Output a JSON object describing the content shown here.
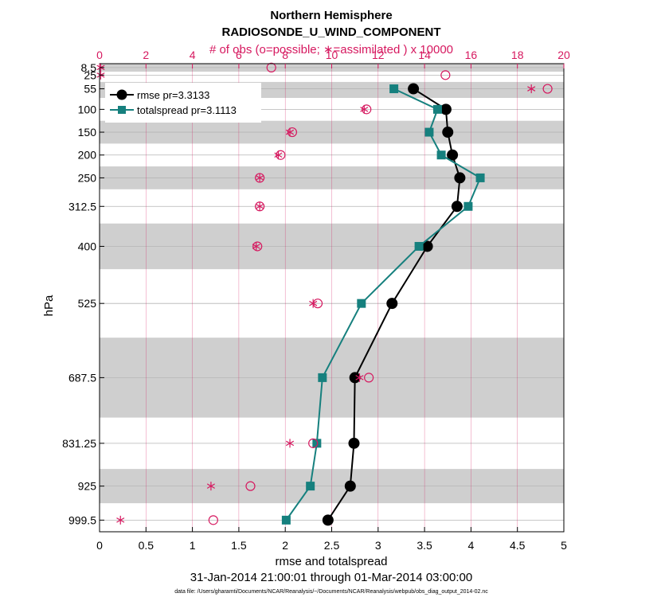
{
  "chart_data": {
    "type": "line",
    "title": "Northern Hemisphere",
    "subtitle": "RADIOSONDE_U_WIND_COMPONENT",
    "top_axis_label": "# of obs (o=possible; ∗=assimilated ) x 10000",
    "xlabel": "rmse and totalspread",
    "ylabel": "hPa",
    "date_range": "31-Jan-2014 21:00:01 through 01-Mar-2014 03:00:00",
    "footer": "data file: /Users/gharamti/Documents/NCAR/Reanalysis/~/Documents/NCAR/Reanalysis/webpub/obs_diag_output_2014-02.nc",
    "xlim": [
      0,
      5
    ],
    "xticks": [
      "0",
      "0.5",
      "1",
      "1.5",
      "2",
      "2.5",
      "3",
      "3.5",
      "4",
      "4.5",
      "5"
    ],
    "top_xlim": [
      0,
      20
    ],
    "top_xticks": [
      "0",
      "2",
      "4",
      "6",
      "8",
      "10",
      "12",
      "14",
      "16",
      "18",
      "20"
    ],
    "ylim": [
      1025,
      0
    ],
    "levels": [
      8.5,
      25,
      55,
      100,
      150,
      200,
      250,
      312.5,
      400,
      525,
      687.5,
      831.25,
      925,
      999.5
    ],
    "level_labels": [
      "8.5",
      "25",
      "55",
      "100",
      "150",
      "200",
      "250",
      "312.5",
      "400",
      "525",
      "687.5",
      "831.25",
      "925",
      "999.5"
    ],
    "shaded_bands": [
      [
        0,
        17.5
      ],
      [
        40,
        75
      ],
      [
        125,
        175
      ],
      [
        225,
        275
      ],
      [
        350,
        450
      ],
      [
        600,
        775
      ],
      [
        887.5,
        962.5
      ]
    ],
    "grid": true,
    "legend_position": "top-left",
    "series": [
      {
        "name": "rmse pr=3.3133",
        "color": "#000000",
        "marker": "circle",
        "axis": "bottom",
        "y": [
          55,
          100,
          150,
          200,
          250,
          312.5,
          400,
          525,
          687.5,
          831.25,
          925,
          999.5
        ],
        "values": [
          3.38,
          3.73,
          3.75,
          3.8,
          3.88,
          3.85,
          3.53,
          3.15,
          2.75,
          2.74,
          2.7,
          2.46
        ]
      },
      {
        "name": "totalspread pr=3.1113",
        "color": "#16807e",
        "marker": "square",
        "axis": "bottom",
        "y": [
          55,
          100,
          150,
          200,
          250,
          312.5,
          400,
          525,
          687.5,
          831.25,
          925,
          999.5
        ],
        "values": [
          3.17,
          3.64,
          3.55,
          3.68,
          4.1,
          3.97,
          3.44,
          2.82,
          2.4,
          2.34,
          2.27,
          2.01
        ]
      },
      {
        "name": "possible",
        "color": "#d6185f",
        "marker": "open-circle",
        "axis": "top",
        "y": [
          8.5,
          25,
          55,
          100,
          150,
          200,
          250,
          312.5,
          400,
          525,
          687.5,
          831.25,
          925,
          999.5
        ],
        "values": [
          7.4,
          14.9,
          19.3,
          11.5,
          8.3,
          7.8,
          6.9,
          6.9,
          6.8,
          9.4,
          11.6,
          9.2,
          6.5,
          4.9
        ]
      },
      {
        "name": "assimilated",
        "color": "#d6185f",
        "marker": "asterisk",
        "axis": "top",
        "y": [
          8.5,
          25,
          55,
          100,
          150,
          200,
          250,
          312.5,
          400,
          525,
          687.5,
          831.25,
          925,
          999.5
        ],
        "values": [
          0.05,
          0.05,
          18.6,
          11.4,
          8.2,
          7.7,
          6.9,
          6.9,
          6.75,
          9.2,
          11.2,
          8.2,
          4.8,
          0.9
        ]
      }
    ]
  }
}
